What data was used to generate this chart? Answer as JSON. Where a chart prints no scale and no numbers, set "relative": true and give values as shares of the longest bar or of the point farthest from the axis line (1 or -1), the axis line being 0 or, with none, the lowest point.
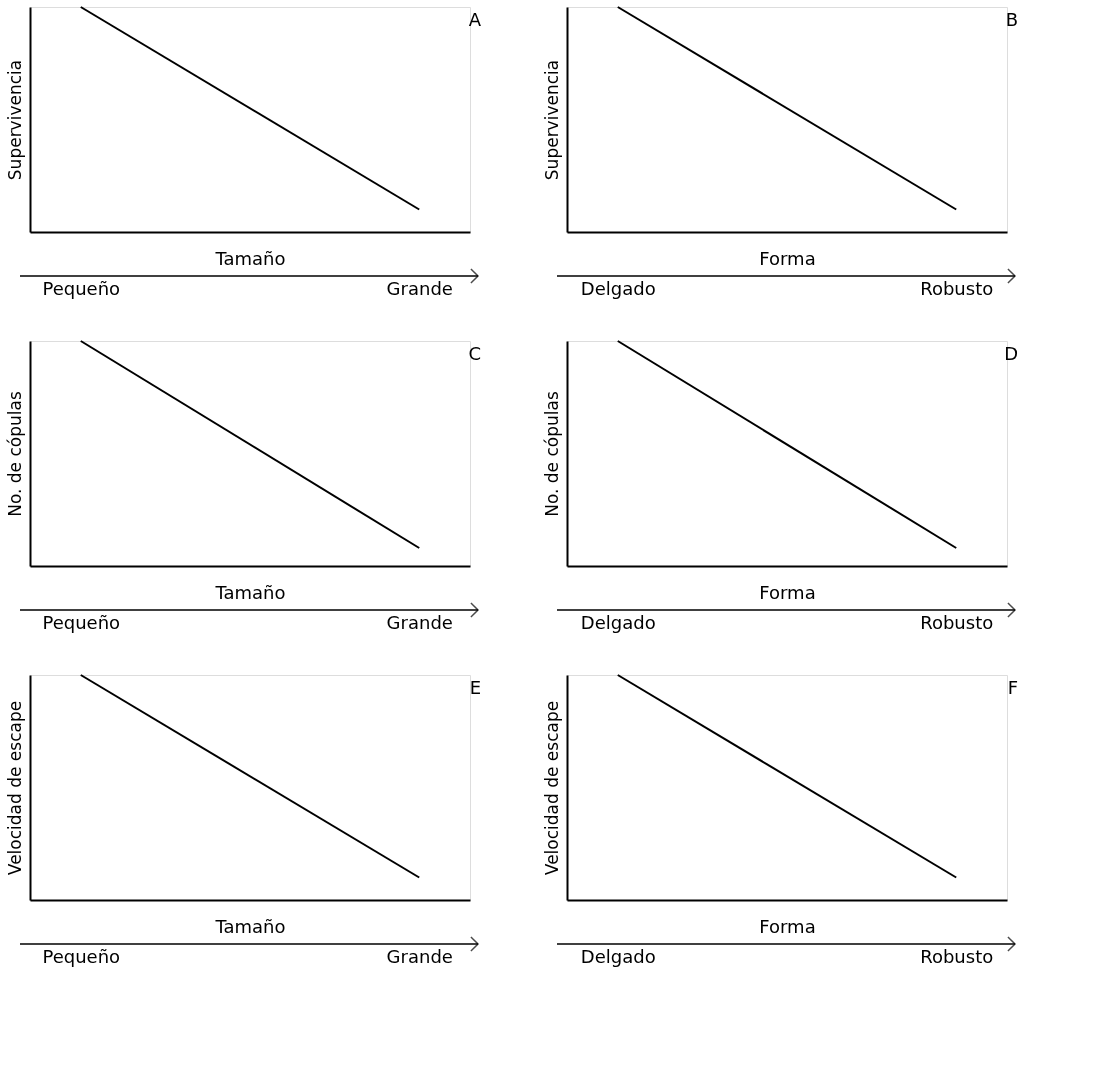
{
  "chart_data": [
    {
      "type": "line",
      "title": "A",
      "xlabel": "Tamaño",
      "ylabel": "Supervivencia",
      "categories": [
        "Pequeño",
        "Grande"
      ],
      "values": [
        1,
        0.1
      ],
      "color": "#000000",
      "relative": true
    },
    {
      "type": "line",
      "title": "B",
      "xlabel": "Forma",
      "ylabel": "Supervivencia",
      "categories": [
        "Delgado",
        "Robusto"
      ],
      "values": [
        1,
        0.1
      ],
      "color": "#000000",
      "relative": true
    },
    {
      "type": "line",
      "title": "C",
      "xlabel": "Tamaño",
      "ylabel": "No. de cópulas",
      "categories": [
        "Pequeño",
        "Grande"
      ],
      "values": [
        1,
        0.08
      ],
      "color": "#000000",
      "relative": true
    },
    {
      "type": "line",
      "title": "D",
      "xlabel": "Forma",
      "ylabel": "No. de cópulas",
      "categories": [
        "Delgado",
        "Robusto"
      ],
      "values": [
        1,
        0.08
      ],
      "color": "#000000",
      "relative": true
    },
    {
      "type": "line",
      "title": "E",
      "xlabel": "Tamaño",
      "ylabel": "Velocidad de escape",
      "categories": [
        "Pequeño",
        "Grande"
      ],
      "values": [
        1,
        0.1
      ],
      "color": "#000000",
      "relative": true
    },
    {
      "type": "line",
      "title": "F",
      "xlabel": "Forma",
      "ylabel": "Velocidad de escape",
      "categories": [
        "Delgado",
        "Robusto"
      ],
      "values": [
        1,
        0.1
      ],
      "color": "#000000",
      "relative": true
    }
  ]
}
